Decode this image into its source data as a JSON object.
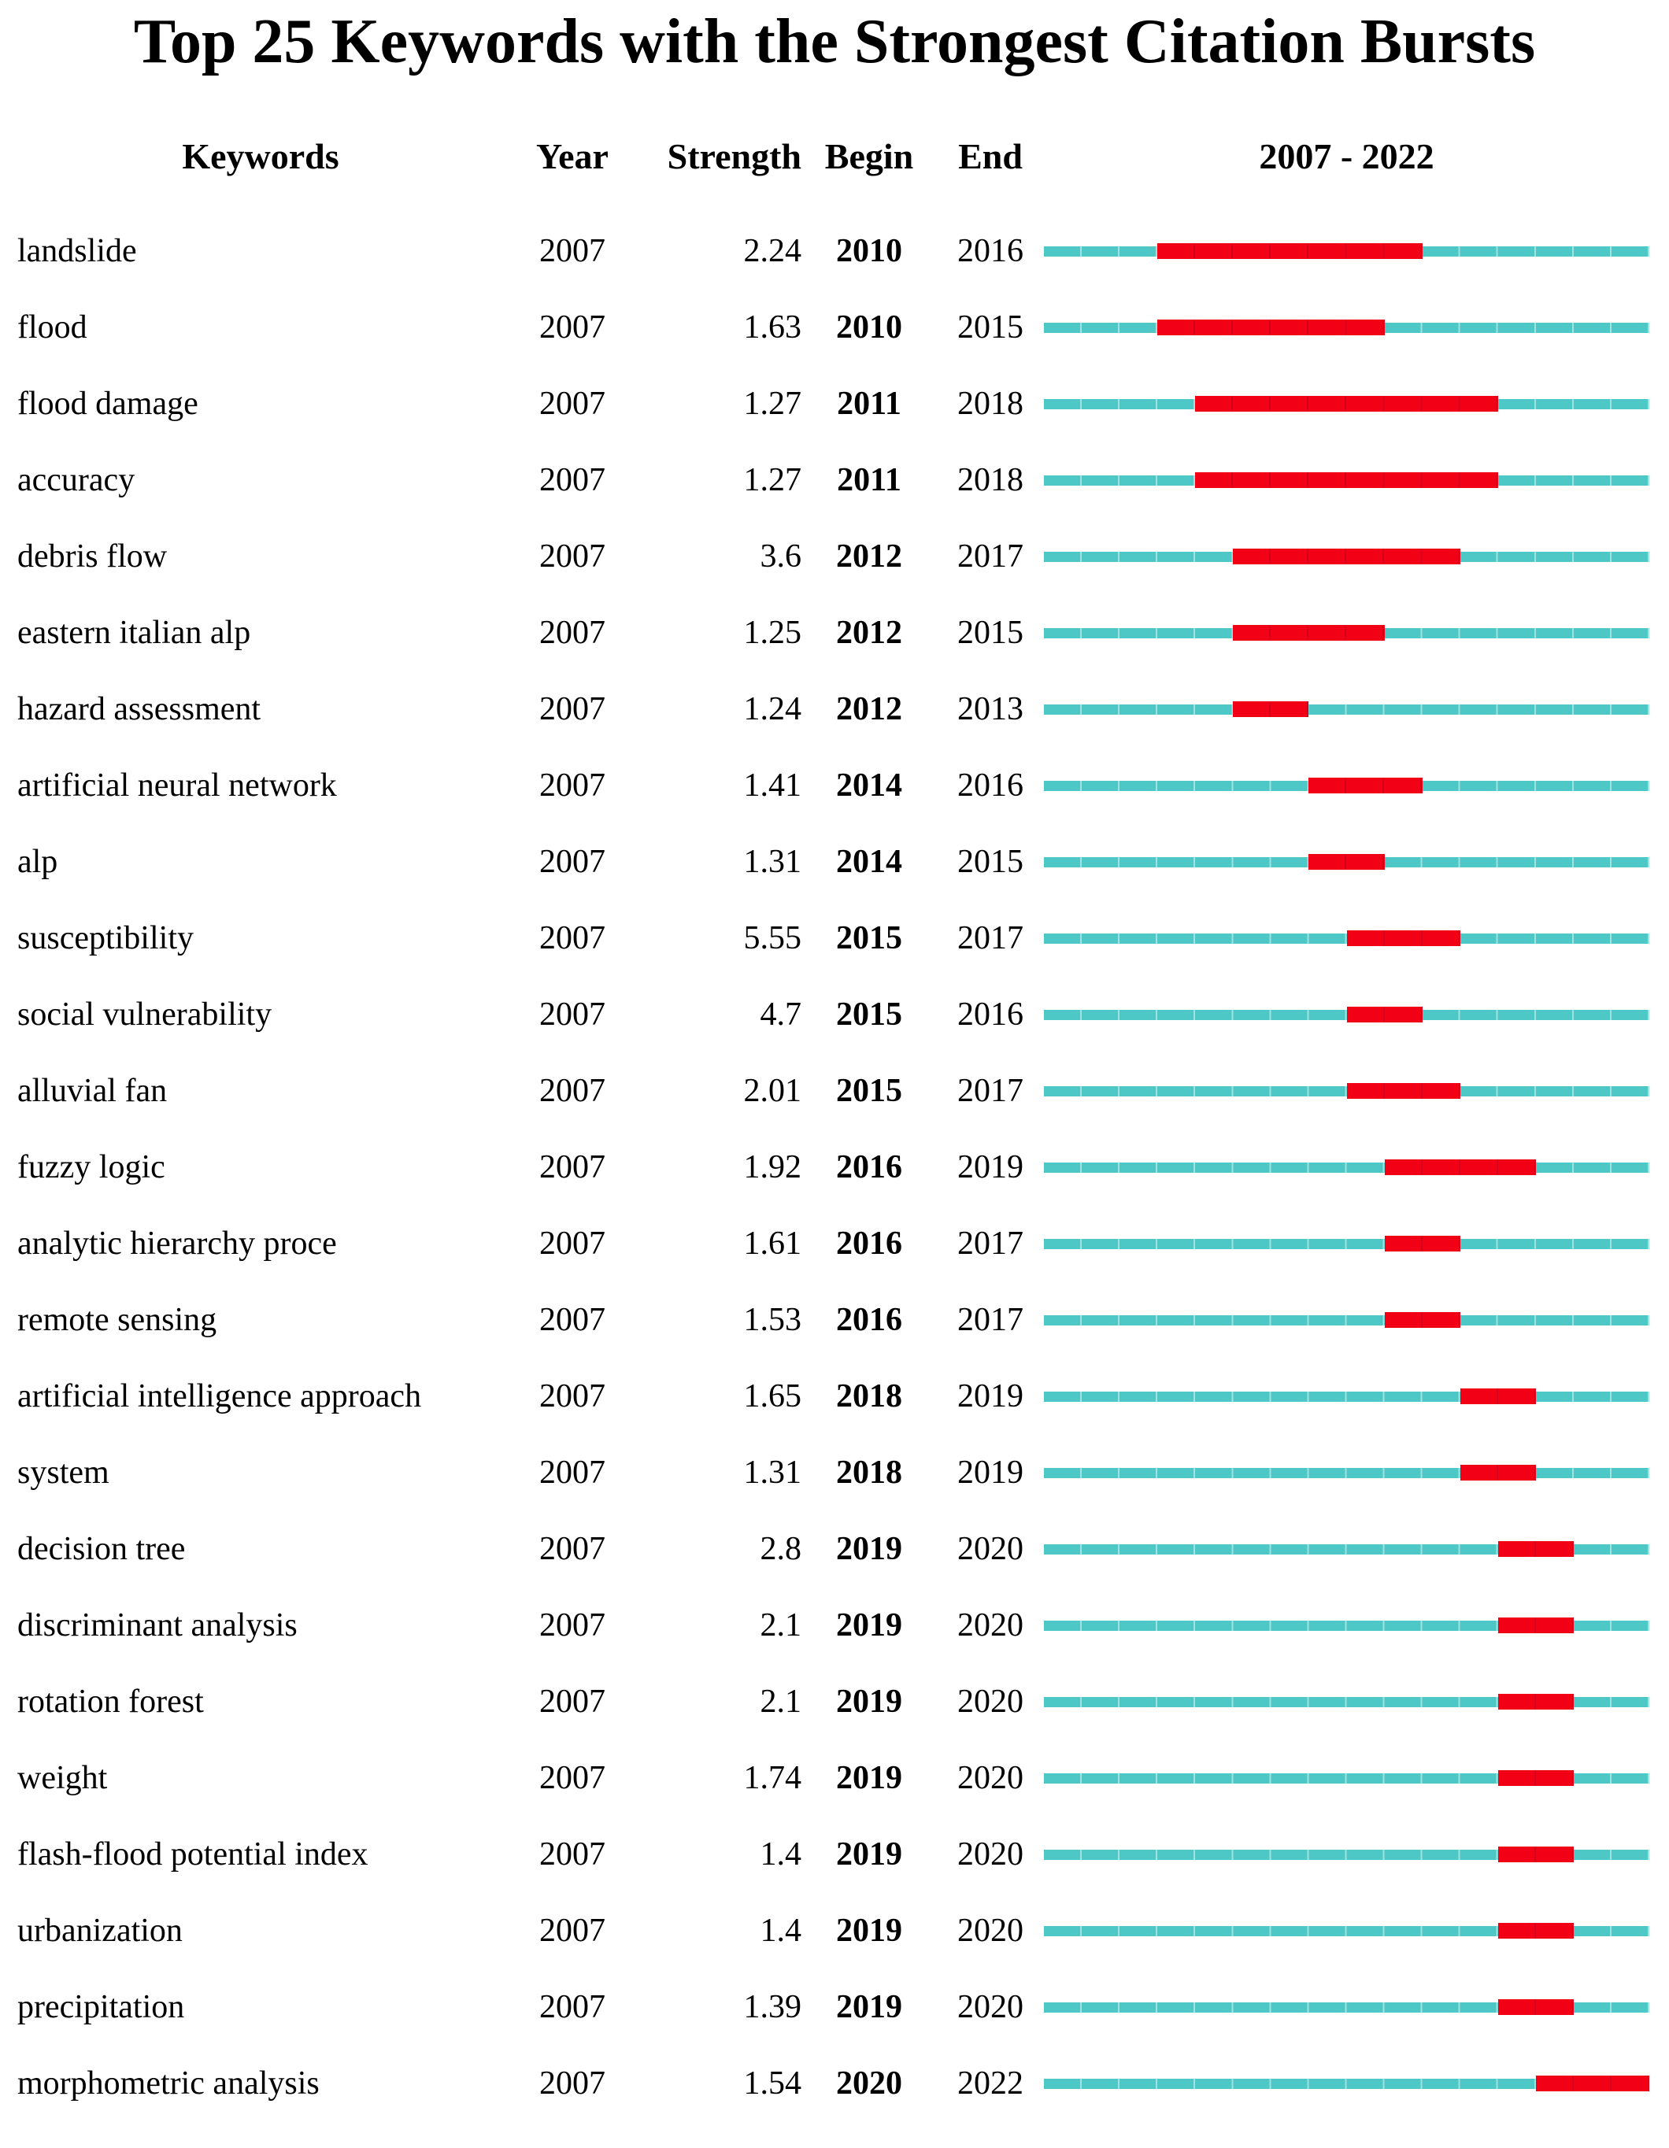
{
  "title": "Top 25 Keywords with the Strongest Citation Bursts",
  "header": {
    "keywords": "Keywords",
    "year": "Year",
    "strength": "Strength",
    "begin": "Begin",
    "end": "End",
    "range": "2007 - 2022"
  },
  "chart_data": {
    "type": "table",
    "title": "Top 25 Keywords with the Strongest Citation Bursts",
    "columns": [
      "Keywords",
      "Year",
      "Strength",
      "Begin",
      "End",
      "2007 - 2022"
    ],
    "timeline_start": 2007,
    "timeline_end": 2022,
    "colors": {
      "timeline_track": "#4EC8C6",
      "timeline_track_tick": "#9FE2E0",
      "burst": "#F20015",
      "burst_tick": "#D4001C"
    },
    "rows": [
      {
        "keyword": "landslide",
        "year": 2007,
        "strength": "2.24",
        "begin": 2010,
        "end": 2016
      },
      {
        "keyword": "flood",
        "year": 2007,
        "strength": "1.63",
        "begin": 2010,
        "end": 2015
      },
      {
        "keyword": "flood damage",
        "year": 2007,
        "strength": "1.27",
        "begin": 2011,
        "end": 2018
      },
      {
        "keyword": "accuracy",
        "year": 2007,
        "strength": "1.27",
        "begin": 2011,
        "end": 2018
      },
      {
        "keyword": "debris flow",
        "year": 2007,
        "strength": "3.6",
        "begin": 2012,
        "end": 2017
      },
      {
        "keyword": "eastern italian alp",
        "year": 2007,
        "strength": "1.25",
        "begin": 2012,
        "end": 2015
      },
      {
        "keyword": "hazard assessment",
        "year": 2007,
        "strength": "1.24",
        "begin": 2012,
        "end": 2013
      },
      {
        "keyword": "artificial neural network",
        "year": 2007,
        "strength": "1.41",
        "begin": 2014,
        "end": 2016
      },
      {
        "keyword": "alp",
        "year": 2007,
        "strength": "1.31",
        "begin": 2014,
        "end": 2015
      },
      {
        "keyword": "susceptibility",
        "year": 2007,
        "strength": "5.55",
        "begin": 2015,
        "end": 2017
      },
      {
        "keyword": "social vulnerability",
        "year": 2007,
        "strength": "4.7",
        "begin": 2015,
        "end": 2016
      },
      {
        "keyword": "alluvial fan",
        "year": 2007,
        "strength": "2.01",
        "begin": 2015,
        "end": 2017
      },
      {
        "keyword": "fuzzy logic",
        "year": 2007,
        "strength": "1.92",
        "begin": 2016,
        "end": 2019
      },
      {
        "keyword": "analytic hierarchy proce",
        "year": 2007,
        "strength": "1.61",
        "begin": 2016,
        "end": 2017
      },
      {
        "keyword": "remote sensing",
        "year": 2007,
        "strength": "1.53",
        "begin": 2016,
        "end": 2017
      },
      {
        "keyword": "artificial intelligence approach",
        "year": 2007,
        "strength": "1.65",
        "begin": 2018,
        "end": 2019
      },
      {
        "keyword": "system",
        "year": 2007,
        "strength": "1.31",
        "begin": 2018,
        "end": 2019
      },
      {
        "keyword": "decision tree",
        "year": 2007,
        "strength": "2.8",
        "begin": 2019,
        "end": 2020
      },
      {
        "keyword": "discriminant analysis",
        "year": 2007,
        "strength": "2.1",
        "begin": 2019,
        "end": 2020
      },
      {
        "keyword": "rotation forest",
        "year": 2007,
        "strength": "2.1",
        "begin": 2019,
        "end": 2020
      },
      {
        "keyword": "weight",
        "year": 2007,
        "strength": "1.74",
        "begin": 2019,
        "end": 2020
      },
      {
        "keyword": "flash-flood potential index",
        "year": 2007,
        "strength": "1.4",
        "begin": 2019,
        "end": 2020
      },
      {
        "keyword": "urbanization",
        "year": 2007,
        "strength": "1.4",
        "begin": 2019,
        "end": 2020
      },
      {
        "keyword": "precipitation",
        "year": 2007,
        "strength": "1.39",
        "begin": 2019,
        "end": 2020
      },
      {
        "keyword": "morphometric analysis",
        "year": 2007,
        "strength": "1.54",
        "begin": 2020,
        "end": 2022
      }
    ]
  }
}
